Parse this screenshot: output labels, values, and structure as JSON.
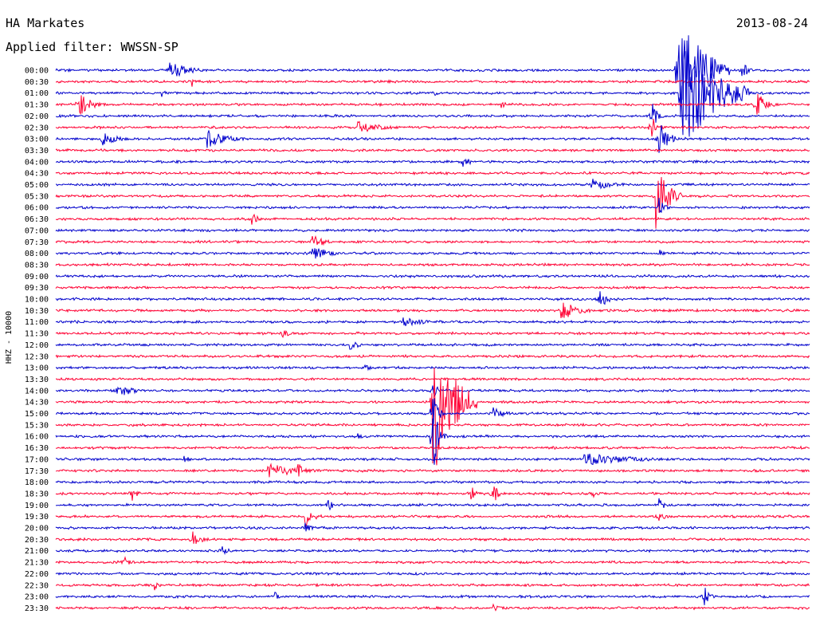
{
  "header": {
    "station": "HA Markates",
    "filter": "Applied filter: WWSSN-SP",
    "date": "2013-08-24"
  },
  "chart_data": {
    "type": "line",
    "ylabel": "HHZ - 10000",
    "colors": [
      "#0000cc",
      "#ff0033"
    ],
    "time_labels": [
      "00:00",
      "00:30",
      "01:00",
      "01:30",
      "02:00",
      "02:30",
      "03:00",
      "03:30",
      "04:00",
      "04:30",
      "05:00",
      "05:30",
      "06:00",
      "06:30",
      "07:00",
      "07:30",
      "08:00",
      "08:30",
      "09:00",
      "09:30",
      "10:00",
      "10:30",
      "11:00",
      "11:30",
      "12:00",
      "12:30",
      "13:00",
      "13:30",
      "14:00",
      "14:30",
      "15:00",
      "15:30",
      "16:00",
      "16:30",
      "17:00",
      "17:30",
      "18:00",
      "18:30",
      "19:00",
      "19:30",
      "20:00",
      "20:30",
      "21:00",
      "21:30",
      "22:00",
      "22:30",
      "23:00",
      "23:30"
    ],
    "events": [
      {
        "row": 0,
        "t": 0.825,
        "amp": 88,
        "dur": 0.06
      },
      {
        "row": 0,
        "t": 0.15,
        "amp": 12,
        "dur": 0.05
      },
      {
        "row": 0,
        "t": 0.91,
        "amp": 14,
        "dur": 0.01
      },
      {
        "row": 1,
        "t": 0.18,
        "amp": 8,
        "dur": 0.01
      },
      {
        "row": 2,
        "t": 0.83,
        "amp": 80,
        "dur": 0.08
      },
      {
        "row": 2,
        "t": 0.14,
        "amp": 6,
        "dur": 0.01
      },
      {
        "row": 2,
        "t": 0.5,
        "amp": 5,
        "dur": 0.01
      },
      {
        "row": 3,
        "t": 0.93,
        "amp": 18,
        "dur": 0.02
      },
      {
        "row": 3,
        "t": 0.03,
        "amp": 16,
        "dur": 0.03
      },
      {
        "row": 3,
        "t": 0.59,
        "amp": 6,
        "dur": 0.01
      },
      {
        "row": 4,
        "t": 0.79,
        "amp": 22,
        "dur": 0.01
      },
      {
        "row": 5,
        "t": 0.4,
        "amp": 8,
        "dur": 0.06
      },
      {
        "row": 5,
        "t": 0.79,
        "amp": 20,
        "dur": 0.01
      },
      {
        "row": 6,
        "t": 0.8,
        "amp": 26,
        "dur": 0.02
      },
      {
        "row": 6,
        "t": 0.06,
        "amp": 10,
        "dur": 0.04
      },
      {
        "row": 6,
        "t": 0.2,
        "amp": 12,
        "dur": 0.05
      },
      {
        "row": 8,
        "t": 0.54,
        "amp": 14,
        "dur": 0.01
      },
      {
        "row": 10,
        "t": 0.71,
        "amp": 8,
        "dur": 0.06
      },
      {
        "row": 11,
        "t": 0.795,
        "amp": 48,
        "dur": 0.03
      },
      {
        "row": 12,
        "t": 0.8,
        "amp": 14,
        "dur": 0.01
      },
      {
        "row": 13,
        "t": 0.26,
        "amp": 10,
        "dur": 0.01
      },
      {
        "row": 15,
        "t": 0.34,
        "amp": 14,
        "dur": 0.02
      },
      {
        "row": 16,
        "t": 0.34,
        "amp": 10,
        "dur": 0.04
      },
      {
        "row": 16,
        "t": 0.8,
        "amp": 6,
        "dur": 0.01
      },
      {
        "row": 20,
        "t": 0.72,
        "amp": 14,
        "dur": 0.02
      },
      {
        "row": 21,
        "t": 0.67,
        "amp": 14,
        "dur": 0.04
      },
      {
        "row": 22,
        "t": 0.46,
        "amp": 6,
        "dur": 0.06
      },
      {
        "row": 23,
        "t": 0.3,
        "amp": 6,
        "dur": 0.02
      },
      {
        "row": 24,
        "t": 0.39,
        "amp": 8,
        "dur": 0.02
      },
      {
        "row": 26,
        "t": 0.41,
        "amp": 6,
        "dur": 0.01
      },
      {
        "row": 28,
        "t": 0.08,
        "amp": 10,
        "dur": 0.04
      },
      {
        "row": 28,
        "t": 0.5,
        "amp": 12,
        "dur": 0.01
      },
      {
        "row": 29,
        "t": 0.5,
        "amp": 100,
        "dur": 0.05
      },
      {
        "row": 30,
        "t": 0.58,
        "amp": 8,
        "dur": 0.03
      },
      {
        "row": 30,
        "t": 0.5,
        "amp": 30,
        "dur": 0.01
      },
      {
        "row": 32,
        "t": 0.4,
        "amp": 6,
        "dur": 0.01
      },
      {
        "row": 32,
        "t": 0.5,
        "amp": 50,
        "dur": 0.01
      },
      {
        "row": 34,
        "t": 0.7,
        "amp": 8,
        "dur": 0.14
      },
      {
        "row": 34,
        "t": 0.17,
        "amp": 6,
        "dur": 0.01
      },
      {
        "row": 35,
        "t": 0.28,
        "amp": 10,
        "dur": 0.08
      },
      {
        "row": 35,
        "t": 0.32,
        "amp": 14,
        "dur": 0.01
      },
      {
        "row": 37,
        "t": 0.1,
        "amp": 12,
        "dur": 0.01
      },
      {
        "row": 37,
        "t": 0.55,
        "amp": 12,
        "dur": 0.01
      },
      {
        "row": 37,
        "t": 0.58,
        "amp": 16,
        "dur": 0.01
      },
      {
        "row": 37,
        "t": 0.71,
        "amp": 8,
        "dur": 0.01
      },
      {
        "row": 38,
        "t": 0.8,
        "amp": 10,
        "dur": 0.01
      },
      {
        "row": 38,
        "t": 0.36,
        "amp": 10,
        "dur": 0.01
      },
      {
        "row": 39,
        "t": 0.33,
        "amp": 14,
        "dur": 0.02
      },
      {
        "row": 39,
        "t": 0.8,
        "amp": 10,
        "dur": 0.01
      },
      {
        "row": 40,
        "t": 0.33,
        "amp": 10,
        "dur": 0.01
      },
      {
        "row": 41,
        "t": 0.18,
        "amp": 12,
        "dur": 0.02
      },
      {
        "row": 42,
        "t": 0.22,
        "amp": 10,
        "dur": 0.01
      },
      {
        "row": 43,
        "t": 0.09,
        "amp": 10,
        "dur": 0.01
      },
      {
        "row": 45,
        "t": 0.13,
        "amp": 8,
        "dur": 0.01
      },
      {
        "row": 46,
        "t": 0.29,
        "amp": 8,
        "dur": 0.01
      },
      {
        "row": 46,
        "t": 0.86,
        "amp": 14,
        "dur": 0.01
      },
      {
        "row": 47,
        "t": 0.58,
        "amp": 6,
        "dur": 0.01
      }
    ]
  }
}
